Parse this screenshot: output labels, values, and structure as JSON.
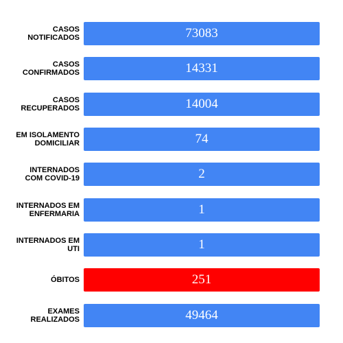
{
  "colors": {
    "default_bar": "#4285f4",
    "highlight_bar": "#ff0000",
    "label_text": "#000000",
    "value_text": "#ffffff"
  },
  "stats": [
    {
      "label": "CASOS\nNOTIFICADOS",
      "value": "73083",
      "color": "#4285f4"
    },
    {
      "label": "CASOS\nCONFIRMADOS",
      "value": "14331",
      "color": "#4285f4"
    },
    {
      "label": "CASOS\nRECUPERADOS",
      "value": "14004",
      "color": "#4285f4"
    },
    {
      "label": "EM ISOLAMENTO\nDOMICILIAR",
      "value": "74",
      "color": "#4285f4"
    },
    {
      "label": "INTERNADOS\nCOM COVID-19",
      "value": "2",
      "color": "#4285f4"
    },
    {
      "label": "INTERNADOS EM\nENFERMARIA",
      "value": "1",
      "color": "#4285f4"
    },
    {
      "label": "INTERNADOS EM\nUTI",
      "value": "1",
      "color": "#4285f4"
    },
    {
      "label": "ÓBITOS",
      "value": "251",
      "color": "#ff0000"
    },
    {
      "label": "EXAMES\nREALIZADOS",
      "value": "49464",
      "color": "#4285f4"
    }
  ]
}
